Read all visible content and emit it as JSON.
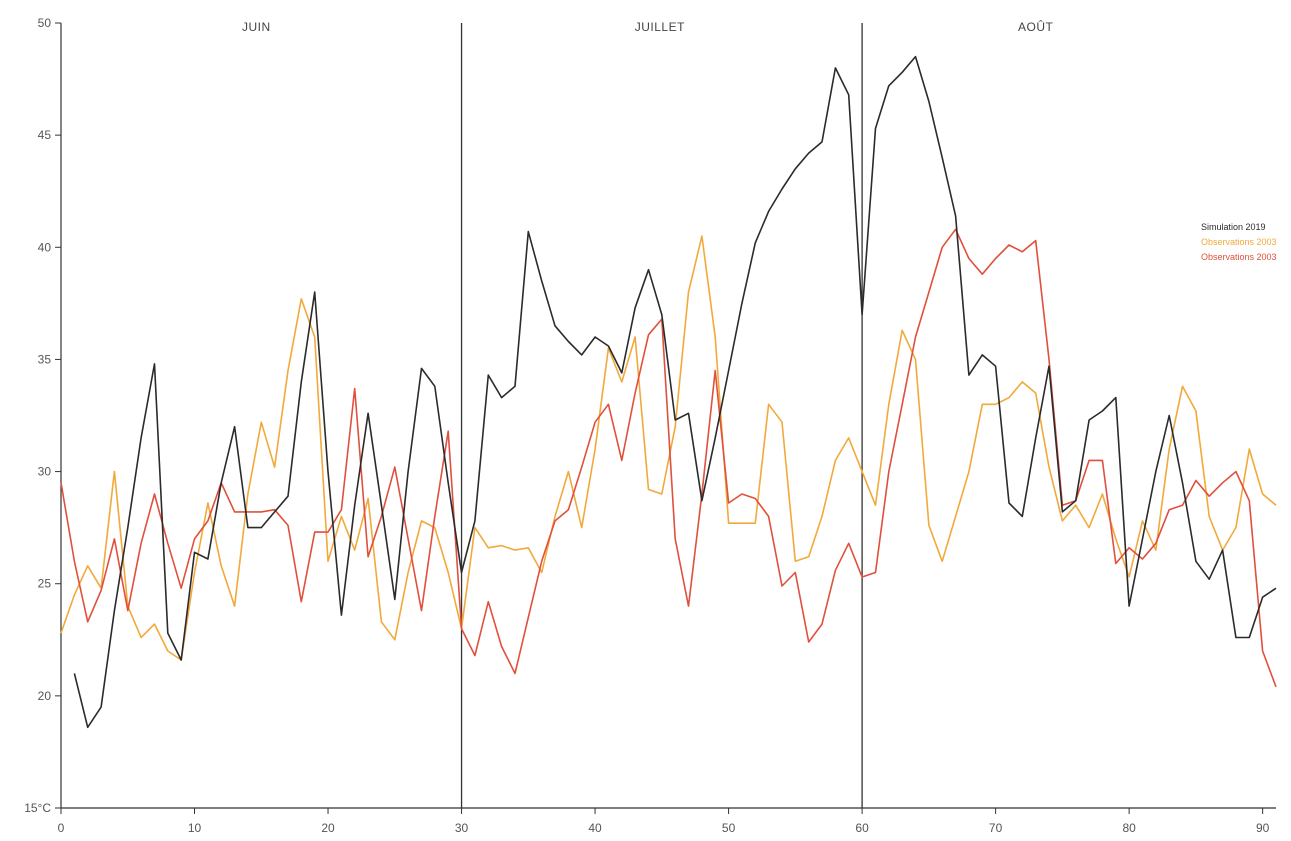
{
  "chart_data": {
    "type": "line",
    "title": "",
    "xlabel": "",
    "ylabel": "",
    "xlim": [
      0,
      91
    ],
    "ylim": [
      15,
      50
    ],
    "x_ticks": [
      0,
      10,
      20,
      30,
      40,
      50,
      60,
      70,
      80,
      90
    ],
    "y_ticks": [
      {
        "value": 15,
        "label": "15°C"
      },
      {
        "value": 20,
        "label": "20"
      },
      {
        "value": 25,
        "label": "25"
      },
      {
        "value": 30,
        "label": "30"
      },
      {
        "value": 35,
        "label": "35"
      },
      {
        "value": 40,
        "label": "40"
      },
      {
        "value": 45,
        "label": "45"
      },
      {
        "value": 50,
        "label": "50"
      }
    ],
    "months": [
      {
        "label": "JUIN",
        "start": 0,
        "end": 30
      },
      {
        "label": "JUILLET",
        "start": 30,
        "end": 60
      },
      {
        "label": "AOÛT",
        "start": 60,
        "end": 91
      }
    ],
    "month_dividers": [
      30,
      60
    ],
    "legend_position": "right",
    "grid": false,
    "series": [
      {
        "name": "Simulation 2019",
        "color": "#2b2b2b",
        "x": [
          1,
          2,
          3,
          4,
          5,
          6,
          7,
          8,
          9,
          10,
          11,
          12,
          13,
          14,
          15,
          16,
          17,
          18,
          19,
          20,
          21,
          22,
          23,
          24,
          25,
          26,
          27,
          28,
          29,
          30,
          31,
          32,
          33,
          34,
          35,
          36,
          37,
          38,
          39,
          40,
          41,
          42,
          43,
          44,
          45,
          46,
          47,
          48,
          49,
          50,
          51,
          52,
          53,
          54,
          55,
          56,
          57,
          58,
          59,
          60,
          61,
          62,
          63,
          64,
          65,
          66,
          67,
          68,
          69,
          70,
          71,
          72,
          73,
          74,
          75,
          76,
          77,
          78,
          79,
          80,
          81,
          82,
          83,
          84,
          85,
          86,
          87,
          88,
          89,
          90,
          91
        ],
        "values": [
          21.0,
          18.6,
          19.5,
          23.8,
          27.5,
          31.5,
          34.8,
          22.8,
          21.6,
          26.4,
          26.1,
          29.5,
          32.0,
          27.5,
          27.5,
          28.2,
          28.9,
          34.0,
          38.0,
          30.0,
          23.6,
          28.5,
          32.6,
          28.5,
          24.3,
          30.0,
          34.6,
          33.8,
          29.5,
          25.5,
          27.8,
          34.3,
          33.3,
          33.8,
          40.7,
          38.5,
          36.5,
          35.8,
          35.2,
          36.0,
          35.6,
          34.4,
          37.3,
          39.0,
          37.0,
          32.3,
          32.6,
          28.7,
          31.5,
          34.5,
          37.5,
          40.2,
          41.6,
          42.6,
          43.5,
          44.2,
          44.7,
          48.0,
          46.8,
          37.0,
          45.3,
          47.2,
          47.8,
          48.5,
          46.5,
          44.0,
          41.4,
          34.3,
          35.2,
          34.7,
          28.6,
          28.0,
          31.5,
          34.7,
          28.2,
          28.7,
          32.3,
          32.7,
          33.3,
          24.0,
          27.0,
          30.0,
          32.5,
          29.5,
          26.0,
          25.2,
          26.5,
          22.6,
          22.6,
          24.4,
          24.8
        ]
      },
      {
        "name": "Observations 2003",
        "color": "#f2a93b",
        "x": [
          0,
          1,
          2,
          3,
          4,
          5,
          6,
          7,
          8,
          9,
          10,
          11,
          12,
          13,
          14,
          15,
          16,
          17,
          18,
          19,
          20,
          21,
          22,
          23,
          24,
          25,
          26,
          27,
          28,
          29,
          30,
          31,
          32,
          33,
          34,
          35,
          36,
          37,
          38,
          39,
          40,
          41,
          42,
          43,
          44,
          45,
          46,
          47,
          48,
          49,
          50,
          51,
          52,
          53,
          54,
          55,
          56,
          57,
          58,
          59,
          60,
          61,
          62,
          63,
          64,
          65,
          66,
          67,
          68,
          69,
          70,
          71,
          72,
          73,
          74,
          75,
          76,
          77,
          78,
          79,
          80,
          81,
          82,
          83,
          84,
          85,
          86,
          87,
          88,
          89,
          90,
          91
        ],
        "values": [
          22.8,
          24.5,
          25.8,
          24.8,
          30.0,
          24.0,
          22.6,
          23.2,
          22.0,
          21.6,
          25.5,
          28.6,
          25.8,
          24.0,
          29.0,
          32.2,
          30.2,
          34.5,
          37.7,
          36.0,
          26.0,
          28.0,
          26.5,
          28.8,
          23.3,
          22.5,
          25.5,
          27.8,
          27.5,
          25.5,
          23.0,
          27.5,
          26.6,
          26.7,
          26.5,
          26.6,
          25.5,
          28.0,
          30.0,
          27.5,
          31.0,
          35.5,
          34.0,
          36.0,
          29.2,
          29.0,
          32.0,
          38.0,
          40.5,
          36.0,
          27.7,
          27.7,
          27.7,
          33.0,
          32.2,
          26.0,
          26.2,
          28.0,
          30.5,
          31.5,
          30.0,
          28.5,
          33.0,
          36.3,
          35.0,
          27.6,
          26.0,
          28.0,
          30.0,
          33.0,
          33.0,
          33.3,
          34.0,
          33.5,
          30.2,
          27.8,
          28.5,
          27.5,
          29.0,
          27.0,
          25.3,
          27.8,
          26.5,
          31.0,
          33.8,
          32.7,
          28.0,
          26.5,
          27.5,
          31.0,
          29.0,
          28.5
        ]
      },
      {
        "name": "Observations 2003",
        "color": "#e0503c",
        "x": [
          0,
          1,
          2,
          3,
          4,
          5,
          6,
          7,
          8,
          9,
          10,
          11,
          12,
          13,
          14,
          15,
          16,
          17,
          18,
          19,
          20,
          21,
          22,
          23,
          24,
          25,
          26,
          27,
          28,
          29,
          30,
          31,
          32,
          33,
          34,
          35,
          36,
          37,
          38,
          39,
          40,
          41,
          42,
          43,
          44,
          45,
          46,
          47,
          48,
          49,
          50,
          51,
          52,
          53,
          54,
          55,
          56,
          57,
          58,
          59,
          60,
          61,
          62,
          63,
          64,
          65,
          66,
          67,
          68,
          69,
          70,
          71,
          72,
          73,
          74,
          75,
          76,
          77,
          78,
          79,
          80,
          81,
          82,
          83,
          84,
          85,
          86,
          87,
          88,
          89,
          90,
          91
        ],
        "values": [
          29.5,
          26.0,
          23.3,
          24.7,
          27.0,
          23.8,
          26.8,
          29.0,
          26.8,
          24.8,
          27.0,
          27.8,
          29.5,
          28.2,
          28.2,
          28.2,
          28.3,
          27.6,
          24.2,
          27.3,
          27.3,
          28.3,
          33.7,
          26.2,
          28.0,
          30.2,
          27.0,
          23.8,
          28.0,
          31.8,
          23.0,
          21.8,
          24.2,
          22.2,
          21.0,
          23.5,
          26.0,
          27.8,
          28.3,
          30.2,
          32.2,
          33.0,
          30.5,
          33.5,
          36.1,
          36.8,
          27.0,
          24.0,
          29.0,
          34.5,
          28.6,
          29.0,
          28.8,
          28.0,
          24.9,
          25.5,
          22.4,
          23.2,
          25.6,
          26.8,
          25.3,
          25.5,
          30.0,
          33.0,
          36.0,
          38.0,
          40.0,
          40.8,
          39.5,
          38.8,
          39.5,
          40.1,
          39.8,
          40.3,
          35.0,
          28.5,
          28.7,
          30.5,
          30.5,
          25.9,
          26.6,
          26.1,
          26.8,
          28.3,
          28.5,
          29.6,
          28.9,
          29.5,
          30.0,
          28.7,
          22.0,
          20.4
        ]
      }
    ]
  }
}
